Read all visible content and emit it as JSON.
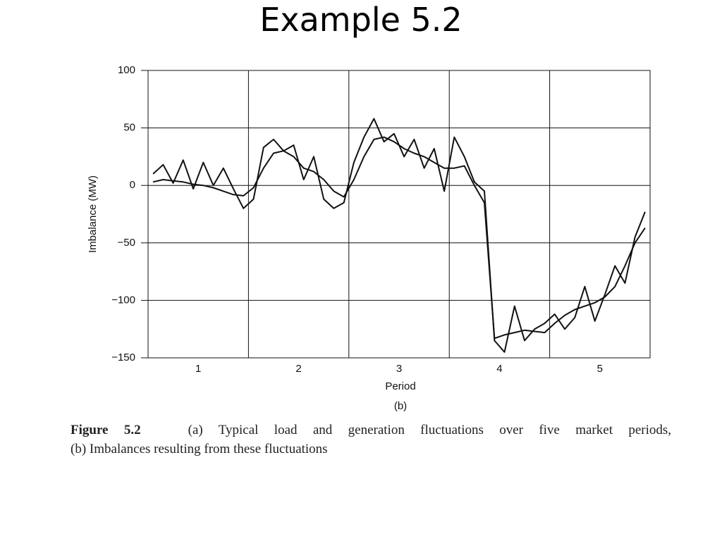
{
  "title": "Example 5.2",
  "chart_data": {
    "type": "line",
    "xlabel": "Period",
    "ylabel": "Imbalance (MW)",
    "panel_label": "(b)",
    "xlim": [
      0.5,
      5.5
    ],
    "xticks": [
      1,
      2,
      3,
      4,
      5
    ],
    "x_grid": [
      1.5,
      2.5,
      3.5,
      4.5
    ],
    "ylim": [
      -150,
      100
    ],
    "yticks": [
      {
        "value": -150,
        "label": "−150"
      },
      {
        "value": -100,
        "label": "−100"
      },
      {
        "value": -50,
        "label": "−50"
      },
      0,
      50,
      100
    ],
    "grid": true,
    "x": [
      0.55,
      0.65,
      0.75,
      0.85,
      0.95,
      1.05,
      1.15,
      1.25,
      1.35,
      1.45,
      1.55,
      1.65,
      1.75,
      1.85,
      1.95,
      2.05,
      2.15,
      2.25,
      2.35,
      2.45,
      2.55,
      2.65,
      2.75,
      2.85,
      2.95,
      3.05,
      3.15,
      3.25,
      3.35,
      3.45,
      3.55,
      3.65,
      3.75,
      3.85,
      3.95,
      4.05,
      4.15,
      4.25,
      4.35,
      4.45,
      4.55,
      4.65,
      4.75,
      4.85,
      4.95,
      5.05,
      5.15,
      5.25,
      5.35,
      5.45
    ],
    "series": [
      {
        "color": "#111111",
        "values": [
          10,
          18,
          2,
          22,
          -3,
          20,
          0,
          15,
          -3,
          -20,
          -12,
          33,
          40,
          30,
          35,
          5,
          25,
          -12,
          -20,
          -15,
          20,
          42,
          58,
          38,
          45,
          25,
          40,
          15,
          32,
          -5,
          42,
          25,
          3,
          -5,
          -135,
          -145,
          -105,
          -135,
          -125,
          -120,
          -112,
          -125,
          -115,
          -88,
          -118,
          -95,
          -70,
          -85,
          -45,
          -23
        ]
      },
      {
        "color": "#111111",
        "values": [
          3,
          5,
          4,
          3,
          1,
          0,
          -2,
          -5,
          -8,
          -9,
          -2,
          15,
          28,
          30,
          25,
          15,
          12,
          5,
          -5,
          -10,
          5,
          25,
          40,
          42,
          38,
          32,
          28,
          25,
          20,
          15,
          15,
          17,
          0,
          -15,
          -133,
          -130,
          -128,
          -126,
          -127,
          -128,
          -120,
          -113,
          -108,
          -105,
          -102,
          -97,
          -88,
          -70,
          -50,
          -37
        ]
      }
    ]
  },
  "caption": {
    "label": "Figure 5.2",
    "line1": "(a) Typical load and generation fluctuations over five market periods,",
    "line2": "(b) Imbalances resulting from these fluctuations"
  }
}
